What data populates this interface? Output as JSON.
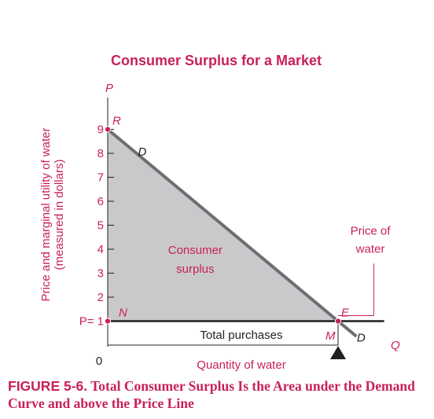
{
  "chart_data": {
    "type": "area",
    "title": "Consumer Surplus for a Market",
    "ylabel_line1": "Price and marginal utility of water",
    "ylabel_line2": "(measured in dollars)",
    "xlabel": "Quantity of water",
    "y_axis_symbol": "P",
    "x_axis_symbol": "Q",
    "yticks": [
      {
        "value": 9,
        "label": "9"
      },
      {
        "value": 8,
        "label": "8"
      },
      {
        "value": 7,
        "label": "7"
      },
      {
        "value": 6,
        "label": "6"
      },
      {
        "value": 5,
        "label": "5"
      },
      {
        "value": 4,
        "label": "4"
      },
      {
        "value": 3,
        "label": "3"
      },
      {
        "value": 2,
        "label": "2"
      },
      {
        "value": 1,
        "label": "P= 1"
      }
    ],
    "origin_label": "0",
    "ylim": [
      0,
      10
    ],
    "xlim": [
      0,
      12
    ],
    "demand_curve": {
      "name": "D",
      "points": [
        {
          "x": 0,
          "y": 9
        },
        {
          "x": 10,
          "y": 1
        },
        {
          "x": 10.8,
          "y": 0.36
        }
      ]
    },
    "price_line": {
      "y": 1,
      "x_end": 12
    },
    "points": [
      {
        "label": "R",
        "x": 0,
        "y": 9
      },
      {
        "label": "N",
        "x": 0,
        "y": 1
      },
      {
        "label": "E",
        "x": 10,
        "y": 1
      },
      {
        "label": "M",
        "x": 10,
        "y": 0
      }
    ],
    "shaded_region": {
      "label_line1": "Consumer",
      "label_line2": "surplus",
      "vertices": [
        [
          0,
          9
        ],
        [
          0,
          1
        ],
        [
          10,
          1
        ]
      ]
    },
    "annotations": {
      "total_purchases": "Total purchases",
      "price_of_water_line1": "Price of",
      "price_of_water_line2": "water"
    },
    "grid": false,
    "colors": {
      "accent": "#c8205a",
      "curve": "#6d6e71",
      "fill": "#c9c9cb",
      "ink": "#231f20"
    }
  },
  "caption": {
    "figure_number": "FIGURE 5-6.",
    "text": "Total Consumer Surplus Is the Area under the Demand Curve and above the Price Line"
  }
}
